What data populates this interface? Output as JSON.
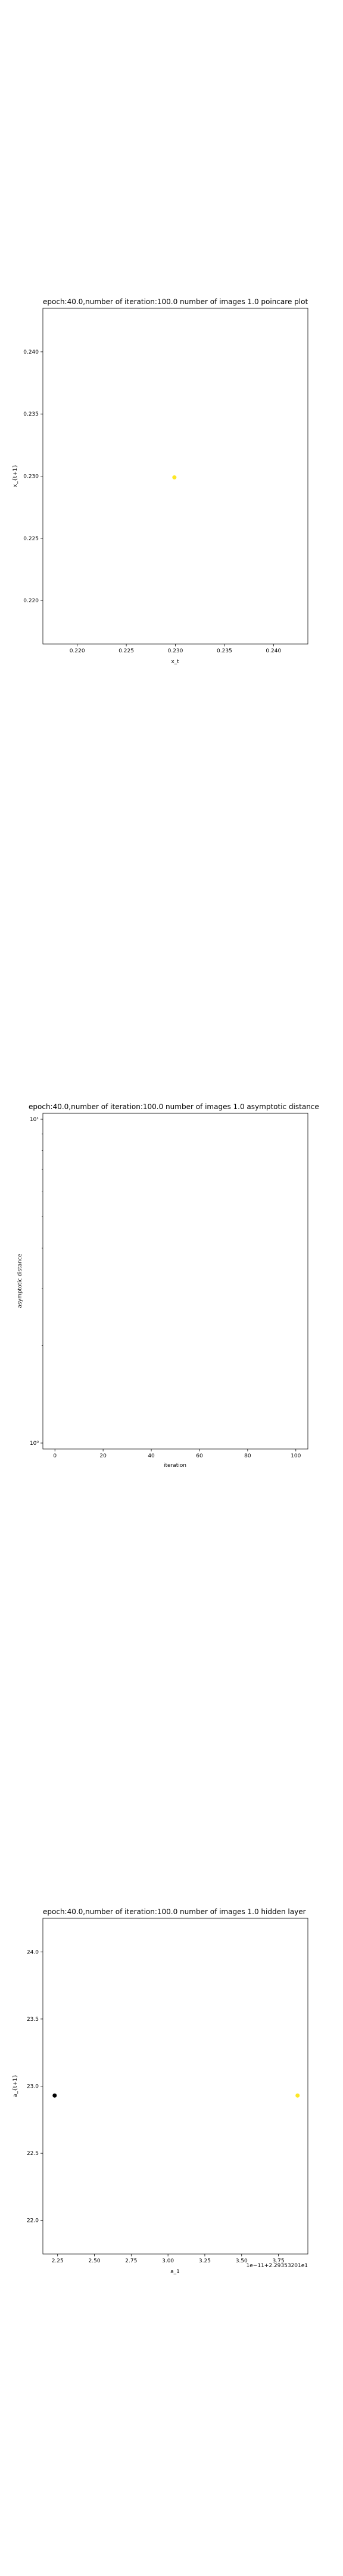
{
  "chart_data": [
    {
      "type": "scatter",
      "title": "epoch:40.0,number of iteration:100.0 number of images 1.0 poincare plot",
      "xlabel": "x_t",
      "ylabel": "x_{t+1}",
      "xlim": [
        0.2165,
        0.2435
      ],
      "ylim": [
        0.2165,
        0.2435
      ],
      "xticks": [
        0.22,
        0.225,
        0.23,
        0.235,
        0.24
      ],
      "yticks": [
        0.22,
        0.225,
        0.23,
        0.235,
        0.24
      ],
      "xtick_labels": [
        "0.220",
        "0.225",
        "0.230",
        "0.235",
        "0.240"
      ],
      "ytick_labels": [
        "0.220",
        "0.225",
        "0.230",
        "0.235",
        "0.240"
      ],
      "points": [
        {
          "x": 0.2299,
          "y": 0.2299,
          "color": "#fde725"
        }
      ],
      "grid": false
    },
    {
      "type": "line",
      "title": "epoch:40.0,number of iteration:100.0  number of images 1.0 asymptotic distance",
      "xlabel": "iteration",
      "ylabel": "asymptotic distance",
      "xlim": [
        -5,
        105
      ],
      "yscale": "log",
      "xticks": [
        0,
        20,
        40,
        60,
        80,
        100
      ],
      "xtick_labels": [
        "0",
        "20",
        "40",
        "60",
        "80",
        "100"
      ],
      "ytick_labels": [
        "10⁰",
        "10¹"
      ],
      "series": [],
      "grid": false
    },
    {
      "type": "scatter",
      "title": "epoch:40.0,number of iteration:100.0  number of images 1.0 hidden layer",
      "xlabel": "a_1",
      "ylabel": "a_{t+1}",
      "xlim": [
        2.15,
        3.95
      ],
      "ylim": [
        21.75,
        24.25
      ],
      "xticks": [
        2.25,
        2.5,
        2.75,
        3.0,
        3.25,
        3.5,
        3.75
      ],
      "yticks": [
        22.0,
        22.5,
        23.0,
        23.5,
        24.0
      ],
      "xtick_labels": [
        "2.25",
        "2.50",
        "2.75",
        "3.00",
        "3.25",
        "3.50",
        "3.75"
      ],
      "ytick_labels": [
        "22.0",
        "22.5",
        "23.0",
        "23.5",
        "24.0"
      ],
      "offset_text": "1e−11+2.29353201e1",
      "points": [
        {
          "x": 2.23,
          "y": 22.93,
          "color": "#000000"
        },
        {
          "x": 3.88,
          "y": 22.93,
          "color": "#fde725"
        }
      ],
      "grid": false
    }
  ]
}
